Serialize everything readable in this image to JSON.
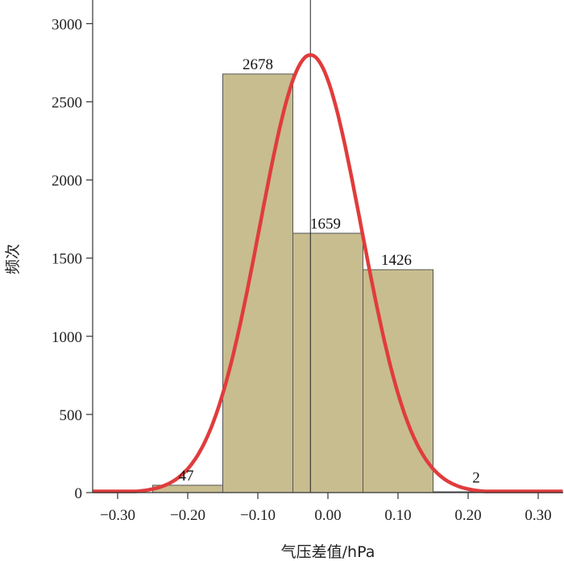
{
  "chart_data": {
    "type": "bar",
    "subtype": "histogram with fitted normal curve",
    "xlabel": "气压差值/hPa",
    "ylabel": "频次",
    "xlim": [
      -0.335,
      0.335
    ],
    "ylim": [
      0,
      3000
    ],
    "x_ticks": [
      -0.3,
      -0.2,
      -0.1,
      0.0,
      0.1,
      0.2,
      0.3
    ],
    "x_tick_labels": [
      "−0.30",
      "−0.20",
      "−0.10",
      "0.00",
      "0.10",
      "0.20",
      "0.30"
    ],
    "y_ticks": [
      0,
      500,
      1000,
      1500,
      2000,
      2500,
      3000
    ],
    "y_tick_labels": [
      "0",
      "500",
      "1000",
      "1500",
      "2000",
      "2500",
      "3000"
    ],
    "bins": [
      {
        "x0": -0.25,
        "x1": -0.15,
        "value": 47,
        "label": "47"
      },
      {
        "x0": -0.15,
        "x1": -0.05,
        "value": 2678,
        "label": "2678"
      },
      {
        "x0": -0.05,
        "x1": 0.05,
        "value": 1659,
        "label": "1659"
      },
      {
        "x0": 0.05,
        "x1": 0.15,
        "value": 1426,
        "label": "1426"
      },
      {
        "x0": 0.15,
        "x1": 0.25,
        "value": 2,
        "label": "2"
      }
    ],
    "reference_line_x": -0.025,
    "curve": {
      "type": "normal",
      "mean": -0.025,
      "std": 0.0725,
      "peak": 2800
    },
    "colors": {
      "bar_fill": "#c8bd8f",
      "bar_stroke": "#555555",
      "curve": "#e03c3c",
      "axis": "#333333"
    },
    "grid": false,
    "legend": "none"
  }
}
